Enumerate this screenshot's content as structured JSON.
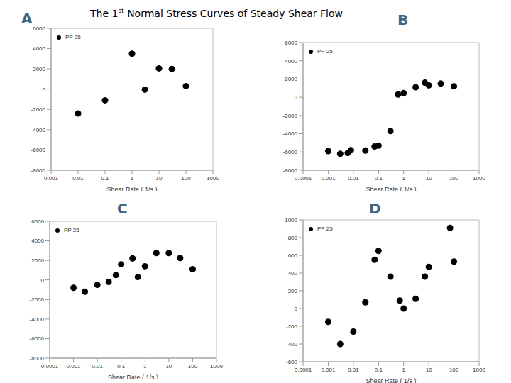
{
  "title": "The 1st Normal Stress Curves of Steady Shear Flow",
  "chart_data": [
    {
      "type": "scatter",
      "title": "A",
      "x_label": "Shear Rate ( 1/s )",
      "log": "x",
      "grid": false,
      "legend": "upper left",
      "x": [
        0.01,
        0.1,
        1,
        3,
        10,
        30,
        100
      ],
      "series": [
        {
          "name": "PP 25",
          "color": "#000000",
          "marker": "circle",
          "values": [
            -2400,
            -1100,
            3500,
            -50,
            2050,
            2000,
            300
          ]
        }
      ],
      "xlim": [
        0.001,
        1000
      ],
      "xticks": [
        0.001,
        0.01,
        0.1,
        1,
        10,
        100,
        1000
      ],
      "ylim": [
        -8000,
        6000
      ],
      "yticks": [
        -8000,
        -6000,
        -4000,
        -2000,
        0,
        2000,
        4000,
        6000
      ]
    },
    {
      "type": "scatter",
      "title": "B",
      "x_label": "Shear Rate ( 1/s )",
      "log": "x",
      "grid": false,
      "legend": "upper left",
      "x": [
        0.001,
        0.003,
        0.006,
        0.008,
        0.03,
        0.07,
        0.1,
        0.3,
        0.6,
        1,
        3,
        7,
        10,
        30,
        100
      ],
      "series": [
        {
          "name": "PP 25",
          "color": "#000000",
          "marker": "circle",
          "values": [
            -5900,
            -6200,
            -6100,
            -5800,
            -5850,
            -5400,
            -5300,
            -3700,
            300,
            450,
            1100,
            1600,
            1300,
            1500,
            1200
          ]
        }
      ],
      "xlim": [
        0.0001,
        1000
      ],
      "xticks": [
        0.0001,
        0.001,
        0.01,
        0.1,
        1,
        10,
        100,
        1000
      ],
      "ylim": [
        -8000,
        6000
      ],
      "yticks": [
        -8000,
        -6000,
        -4000,
        -2000,
        0,
        2000,
        4000,
        6000
      ]
    },
    {
      "type": "scatter",
      "title": "C",
      "x_label": "Shear Rate ( 1/s )",
      "log": "x",
      "grid": false,
      "legend": "upper left",
      "x": [
        0.001,
        0.003,
        0.01,
        0.03,
        0.06,
        0.1,
        0.3,
        0.5,
        1,
        3,
        10,
        30,
        100
      ],
      "series": [
        {
          "name": "PP 25",
          "color": "#000000",
          "marker": "circle",
          "values": [
            -800,
            -1200,
            -500,
            -200,
            500,
            1600,
            2200,
            300,
            1400,
            2750,
            2750,
            2250,
            1100
          ]
        }
      ],
      "xlim": [
        0.0001,
        1000
      ],
      "xticks": [
        0.0001,
        0.001,
        0.01,
        0.1,
        1,
        10,
        100,
        1000
      ],
      "ylim": [
        -8000,
        6000
      ],
      "yticks": [
        -8000,
        -6000,
        -4000,
        -2000,
        0,
        2000,
        4000,
        6000
      ]
    },
    {
      "type": "scatter",
      "title": "D",
      "x_label": "Shear Rate ( 1/s )",
      "log": "x",
      "grid": false,
      "legend": "upper left",
      "x": [
        0.001,
        0.003,
        0.01,
        0.03,
        0.07,
        0.1,
        0.3,
        0.7,
        1,
        3,
        7,
        10,
        70,
        100
      ],
      "series": [
        {
          "name": "PP 25",
          "color": "#000000",
          "marker": "circle",
          "values": [
            -150,
            -400,
            -260,
            70,
            550,
            650,
            360,
            90,
            0,
            110,
            360,
            470,
            910,
            530
          ]
        }
      ],
      "xlim": [
        0.0001,
        1000
      ],
      "xticks": [
        0.0001,
        0.001,
        0.01,
        0.1,
        1,
        10,
        100,
        1000
      ],
      "ylim": [
        -600,
        1000
      ],
      "yticks": [
        -600,
        -400,
        -200,
        0,
        200,
        400,
        600,
        800,
        1000
      ]
    }
  ]
}
